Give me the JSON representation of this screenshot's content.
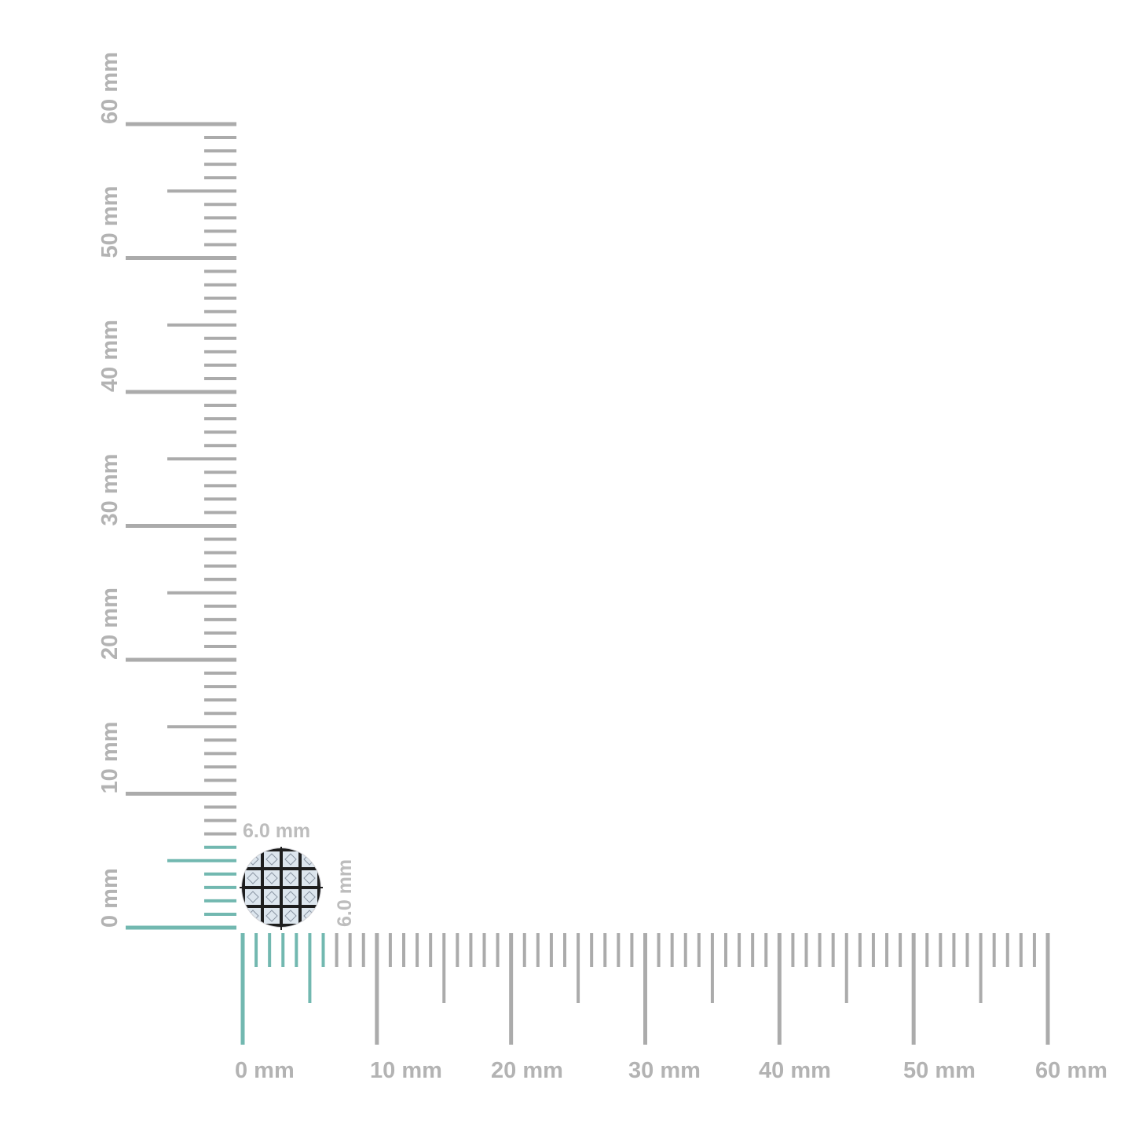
{
  "rulers": {
    "unit": "mm",
    "range": [
      0,
      60
    ],
    "minor_step": 1,
    "mid_step": 5,
    "major_step": 10,
    "vertical_labels": [
      "0 mm",
      "10 mm",
      "20 mm",
      "30 mm",
      "40 mm",
      "50 mm",
      "60 mm"
    ],
    "horizontal_labels": [
      "0 mm",
      "10 mm",
      "20 mm",
      "30 mm",
      "40 mm",
      "50 mm",
      "60 mm"
    ],
    "highlight_to_mm": 6,
    "colors": {
      "tick": "#ababab",
      "highlight": "#72b8b0"
    }
  },
  "item": {
    "name_icon": "pave-diamond-stud-icon",
    "width_label": "6.0 mm",
    "height_label": "6.0 mm",
    "colors": {
      "metal": "#1e1e1e",
      "stone": "#dde6ee"
    }
  }
}
